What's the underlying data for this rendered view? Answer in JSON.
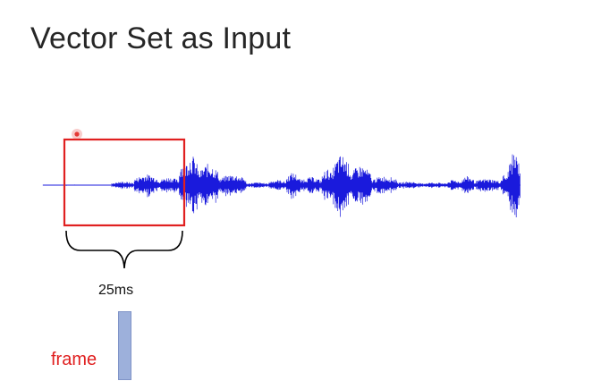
{
  "slide": {
    "title": "Vector Set as Input",
    "duration_label": "25ms",
    "frame_label": "frame"
  },
  "colors": {
    "waveform": "#1a1adc",
    "window_box": "#e02020",
    "frame_label": "#e02020",
    "frame_bar": "#9db0db",
    "cursor": "#e53935"
  },
  "icons": {
    "cursor": "cursor-dot-icon",
    "brace": "curly-brace-icon"
  }
}
